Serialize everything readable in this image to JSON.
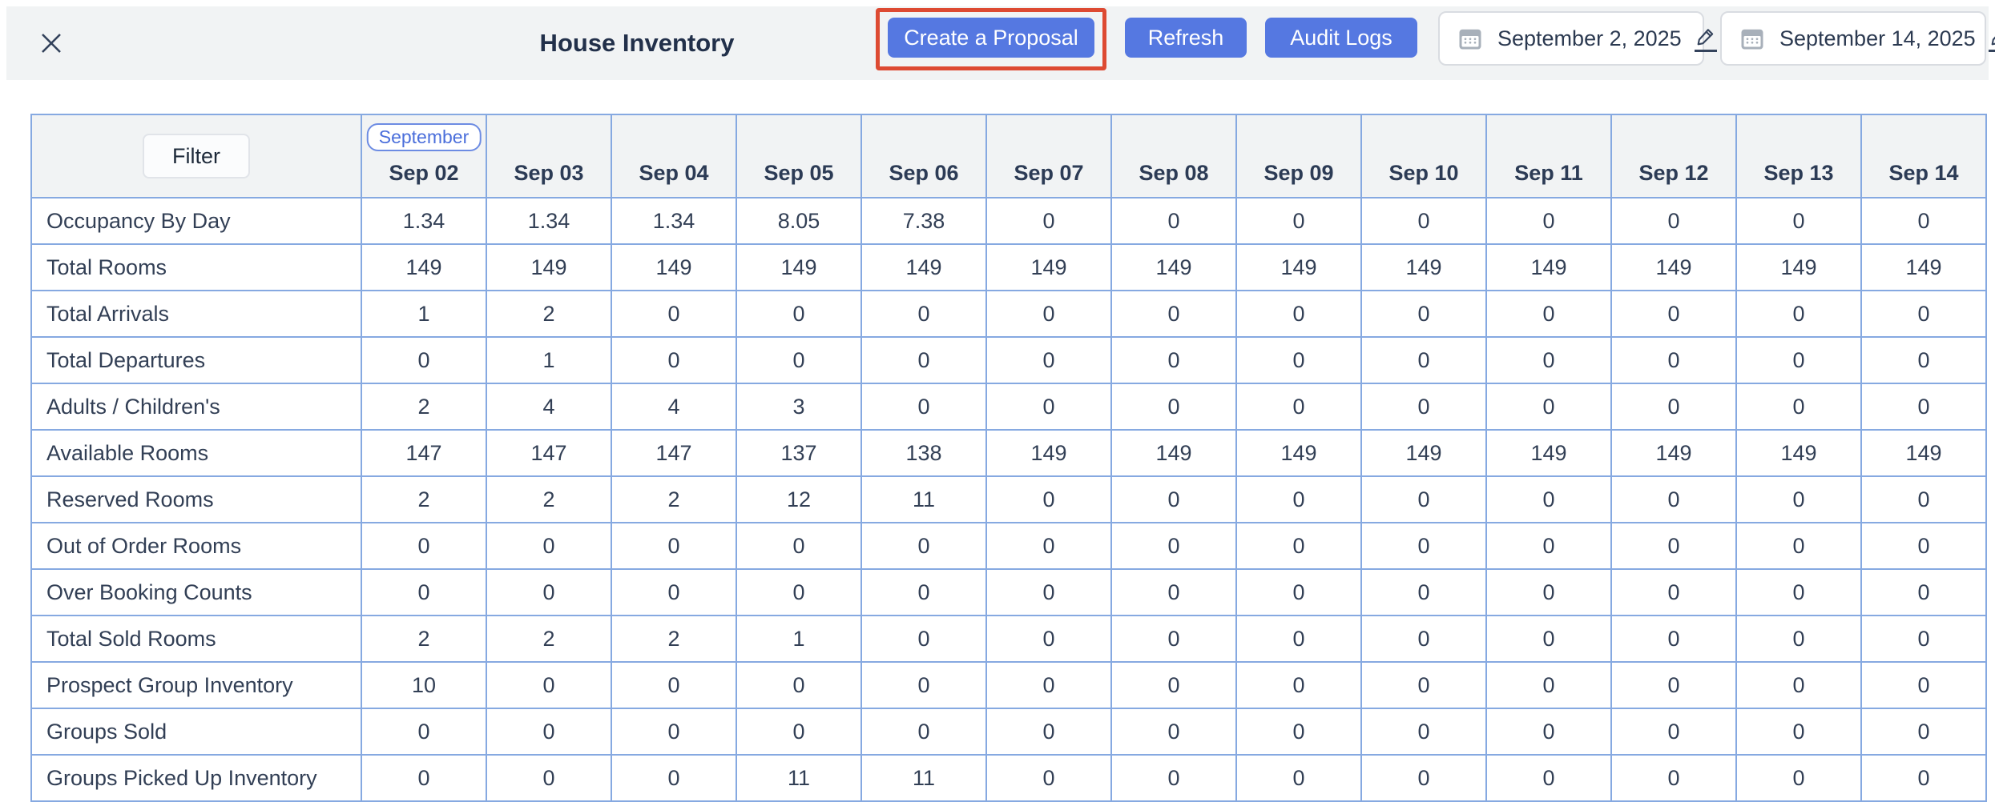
{
  "app": {
    "title": "House Inventory"
  },
  "toolbar": {
    "create_proposal_label": "Create a Proposal",
    "refresh_label": "Refresh",
    "audit_logs_label": "Audit Logs",
    "start_date": "September 2, 2025",
    "end_date": "September 14, 2025"
  },
  "annotation": {
    "highlighted_button": "Create a Proposal",
    "highlight_color": "#dd4a32"
  },
  "icons": {
    "close": "close-icon",
    "calendar": "calendar-icon",
    "edit": "edit-pencil-icon"
  },
  "table": {
    "filter_button_label": "Filter",
    "month_badge": "September",
    "columns": [
      "Sep 02",
      "Sep 03",
      "Sep 04",
      "Sep 05",
      "Sep 06",
      "Sep 07",
      "Sep 08",
      "Sep 09",
      "Sep 10",
      "Sep 11",
      "Sep 12",
      "Sep 13",
      "Sep 14"
    ],
    "rows": [
      {
        "label": "Occupancy By Day",
        "values": [
          "1.34",
          "1.34",
          "1.34",
          "8.05",
          "7.38",
          "0",
          "0",
          "0",
          "0",
          "0",
          "0",
          "0",
          "0"
        ]
      },
      {
        "label": "Total Rooms",
        "values": [
          "149",
          "149",
          "149",
          "149",
          "149",
          "149",
          "149",
          "149",
          "149",
          "149",
          "149",
          "149",
          "149"
        ]
      },
      {
        "label": "Total Arrivals",
        "values": [
          "1",
          "2",
          "0",
          "0",
          "0",
          "0",
          "0",
          "0",
          "0",
          "0",
          "0",
          "0",
          "0"
        ]
      },
      {
        "label": "Total Departures",
        "values": [
          "0",
          "1",
          "0",
          "0",
          "0",
          "0",
          "0",
          "0",
          "0",
          "0",
          "0",
          "0",
          "0"
        ]
      },
      {
        "label": "Adults / Children's",
        "values": [
          "2",
          "4",
          "4",
          "3",
          "0",
          "0",
          "0",
          "0",
          "0",
          "0",
          "0",
          "0",
          "0"
        ]
      },
      {
        "label": "Available Rooms",
        "values": [
          "147",
          "147",
          "147",
          "137",
          "138",
          "149",
          "149",
          "149",
          "149",
          "149",
          "149",
          "149",
          "149"
        ]
      },
      {
        "label": "Reserved Rooms",
        "values": [
          "2",
          "2",
          "2",
          "12",
          "11",
          "0",
          "0",
          "0",
          "0",
          "0",
          "0",
          "0",
          "0"
        ]
      },
      {
        "label": "Out of Order Rooms",
        "values": [
          "0",
          "0",
          "0",
          "0",
          "0",
          "0",
          "0",
          "0",
          "0",
          "0",
          "0",
          "0",
          "0"
        ]
      },
      {
        "label": "Over Booking Counts",
        "values": [
          "0",
          "0",
          "0",
          "0",
          "0",
          "0",
          "0",
          "0",
          "0",
          "0",
          "0",
          "0",
          "0"
        ]
      },
      {
        "label": "Total Sold Rooms",
        "values": [
          "2",
          "2",
          "2",
          "1",
          "0",
          "0",
          "0",
          "0",
          "0",
          "0",
          "0",
          "0",
          "0"
        ]
      },
      {
        "label": "Prospect Group Inventory",
        "values": [
          "10",
          "0",
          "0",
          "0",
          "0",
          "0",
          "0",
          "0",
          "0",
          "0",
          "0",
          "0",
          "0"
        ]
      },
      {
        "label": "Groups Sold",
        "values": [
          "0",
          "0",
          "0",
          "0",
          "0",
          "0",
          "0",
          "0",
          "0",
          "0",
          "0",
          "0",
          "0"
        ]
      },
      {
        "label": "Groups Picked Up Inventory",
        "values": [
          "0",
          "0",
          "0",
          "11",
          "11",
          "0",
          "0",
          "0",
          "0",
          "0",
          "0",
          "0",
          "0"
        ]
      }
    ]
  },
  "colors": {
    "header_bg": "#f1f3f4",
    "grid_border": "#86a9e1",
    "outer_border": "#6e9ad9",
    "accent_blue": "#5578e1",
    "badge_blue": "#4a6edb",
    "annotation_red": "#dd4a32",
    "text_dark": "#2c3a52",
    "title_text": "#22304a"
  }
}
